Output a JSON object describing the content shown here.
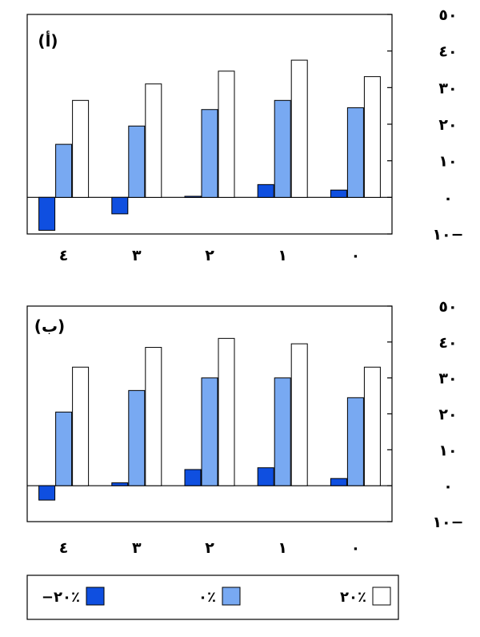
{
  "chart_data": [
    {
      "type": "bar",
      "panel_label": "(أ)",
      "categories": [
        "٤",
        "٣",
        "٢",
        "١",
        "٠"
      ],
      "series": [
        {
          "name": "−٢٠٪",
          "color": "#0f4fe0",
          "values": [
            -9,
            -4.5,
            0.3,
            3.5,
            2
          ]
        },
        {
          "name": "٠٪",
          "color": "#78a9f2",
          "values": [
            14.5,
            19.5,
            24,
            26.5,
            24.5
          ]
        },
        {
          "name": "٢٠٪",
          "color": "#ffffff",
          "values": [
            26.5,
            31,
            34.5,
            37.5,
            33
          ]
        }
      ],
      "ylim": [
        -10,
        50
      ],
      "yticks": [
        50,
        40,
        30,
        20,
        10,
        0,
        -10
      ],
      "ytick_labels": [
        "٥٠",
        "٤٠",
        "٣٠",
        "٢٠",
        "١٠",
        "٠",
        "١٠−"
      ],
      "axis_position": "right",
      "grid": false
    },
    {
      "type": "bar",
      "panel_label": "(ب)",
      "categories": [
        "٤",
        "٣",
        "٢",
        "١",
        "٠"
      ],
      "series": [
        {
          "name": "−٢٠٪",
          "color": "#0f4fe0",
          "values": [
            -4,
            0.8,
            4.5,
            5,
            2
          ]
        },
        {
          "name": "٠٪",
          "color": "#78a9f2",
          "values": [
            20.5,
            26.5,
            30,
            30,
            24.5
          ]
        },
        {
          "name": "٢٠٪",
          "color": "#ffffff",
          "values": [
            33,
            38.5,
            41,
            39.5,
            33
          ]
        }
      ],
      "ylim": [
        -10,
        50
      ],
      "yticks": [
        50,
        40,
        30,
        20,
        10,
        0,
        -10
      ],
      "ytick_labels": [
        "٥٠",
        "٤٠",
        "٣٠",
        "٢٠",
        "١٠",
        "٠",
        "١٠−"
      ],
      "axis_position": "right",
      "grid": false
    }
  ],
  "legend": {
    "placement": "bottom",
    "items": [
      {
        "label": "−٢٠٪",
        "color": "#0f4fe0"
      },
      {
        "label": "٠٪",
        "color": "#78a9f2"
      },
      {
        "label": "٢٠٪",
        "color": "#ffffff"
      }
    ]
  }
}
